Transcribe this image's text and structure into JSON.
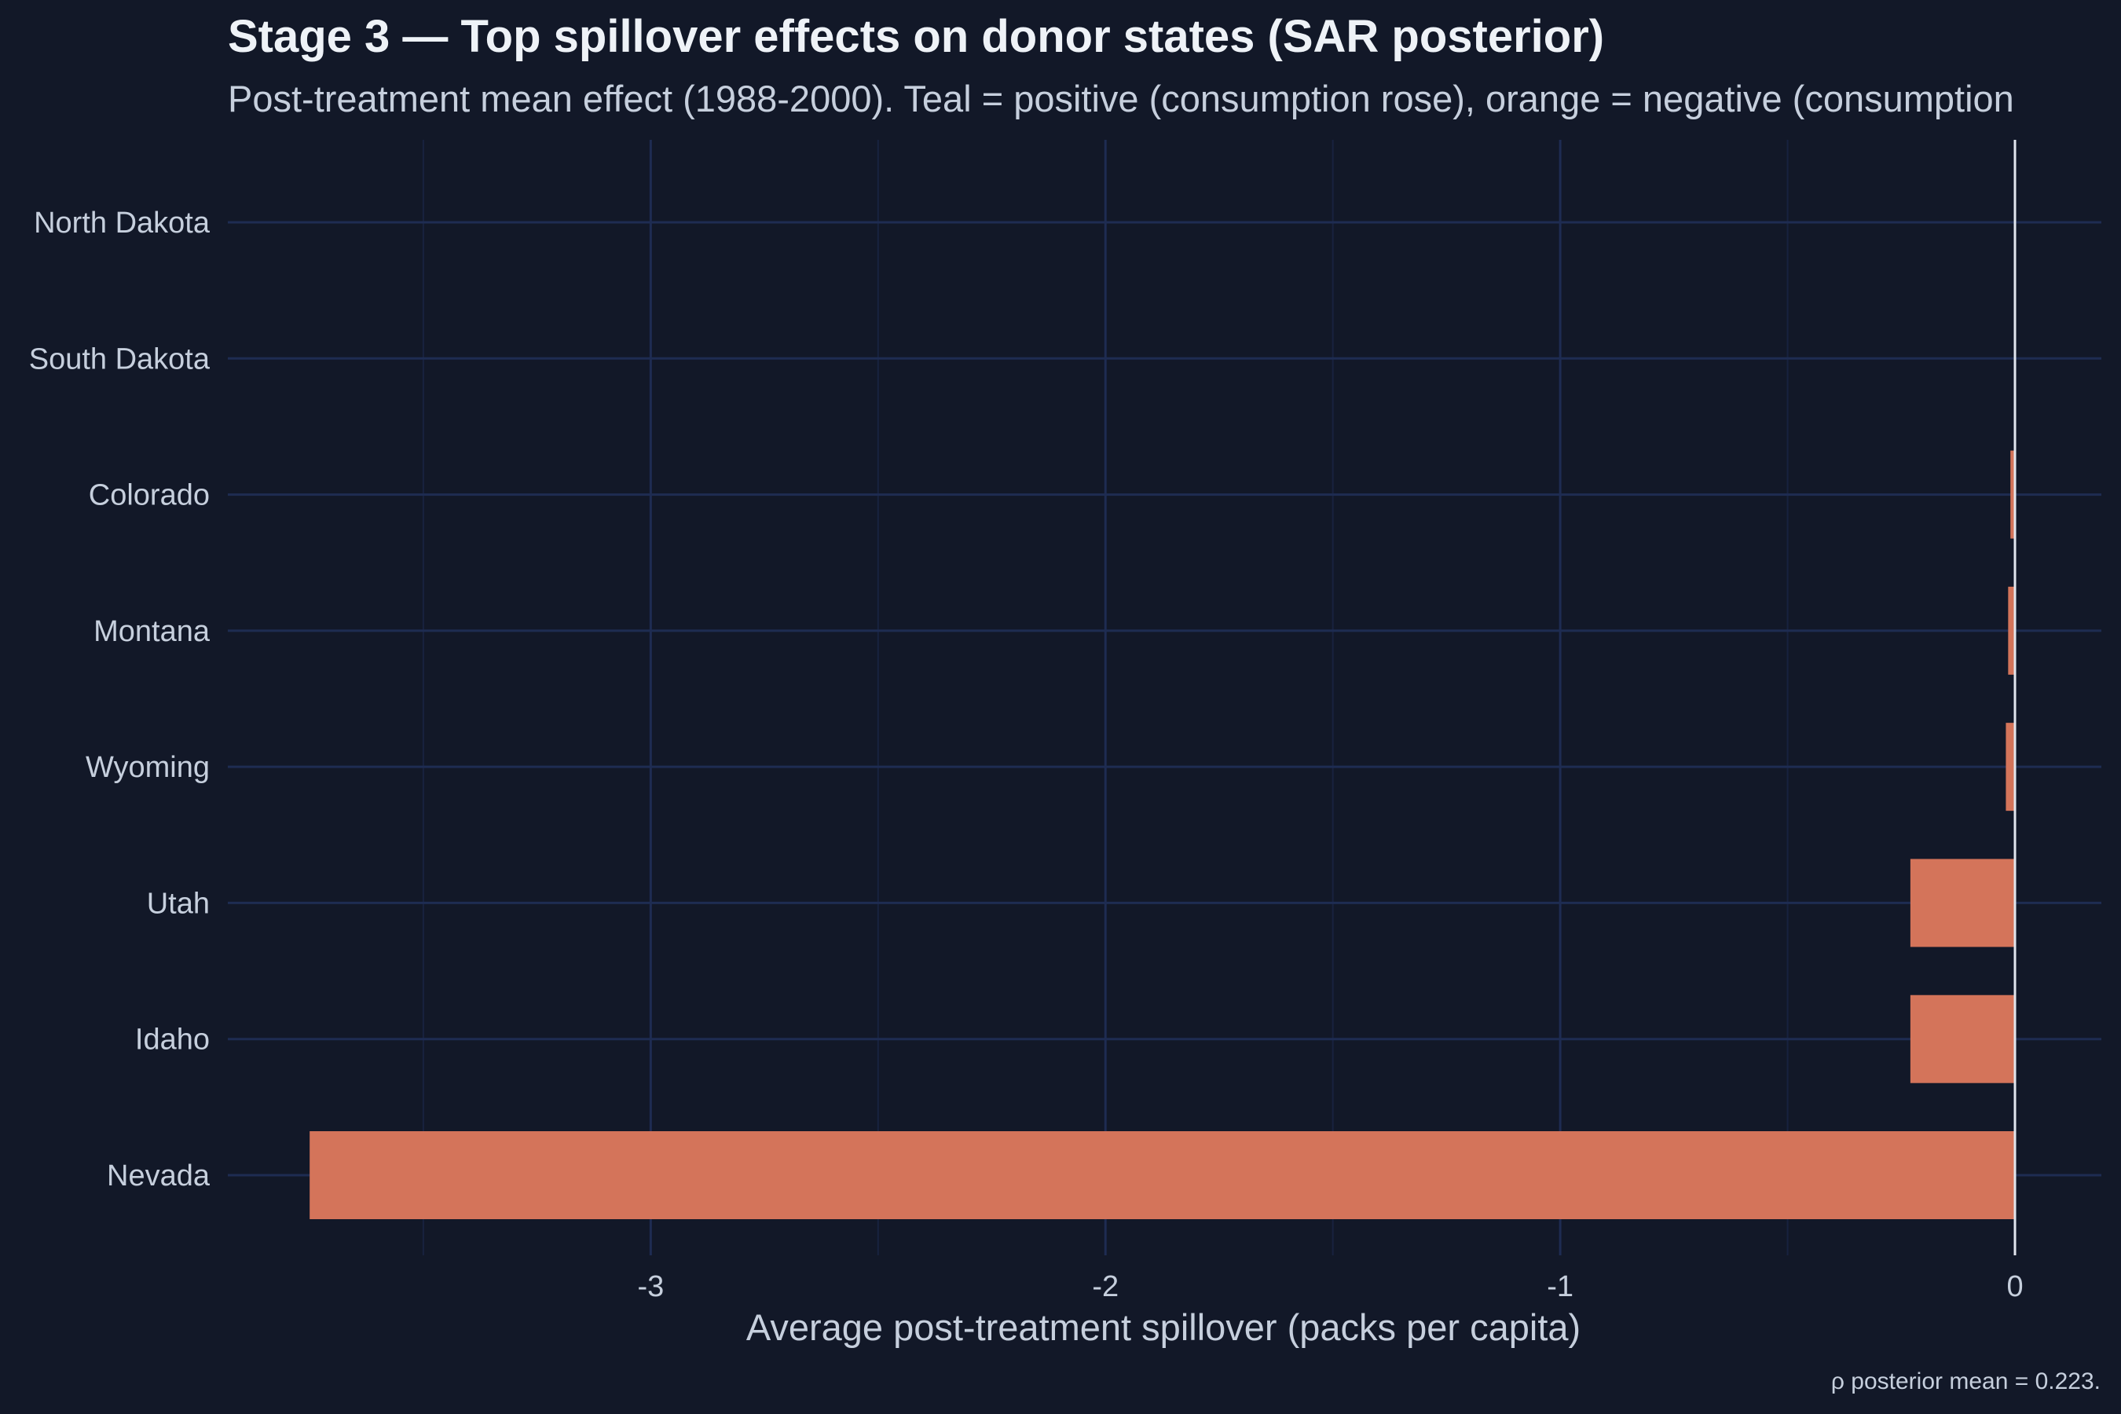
{
  "chart_data": {
    "type": "bar",
    "orientation": "horizontal",
    "title": "Stage 3 — Top spillover effects on donor states (SAR posterior)",
    "subtitle": "Post-treatment mean effect (1988-2000). Teal = positive (consumption rose), orange = negative (consumption",
    "xlabel": "Average post-treatment spillover (packs per capita)",
    "ylabel": "",
    "caption": "ρ posterior mean = 0.223.",
    "categories": [
      "North Dakota",
      "South Dakota",
      "Colorado",
      "Montana",
      "Wyoming",
      "Utah",
      "Idaho",
      "Nevada"
    ],
    "values": [
      0.0,
      0.0,
      -0.01,
      -0.015,
      -0.02,
      -0.23,
      -0.23,
      -3.75
    ],
    "xlim": [
      -3.93,
      0.19
    ],
    "xticks": [
      -3,
      -2,
      -1,
      0
    ],
    "xtick_labels": [
      "-3",
      "-2",
      "-1",
      "0"
    ],
    "grid": true,
    "legend": "none",
    "colors": {
      "background": "#121828",
      "grid_major": "#1e2c52",
      "grid_minor": "#18223f",
      "negative": "#d4745a",
      "positive": "#2bb3a3",
      "zero_line": "#e2e6ee",
      "text": "#c6cfdd",
      "title": "#eef2f7"
    }
  }
}
